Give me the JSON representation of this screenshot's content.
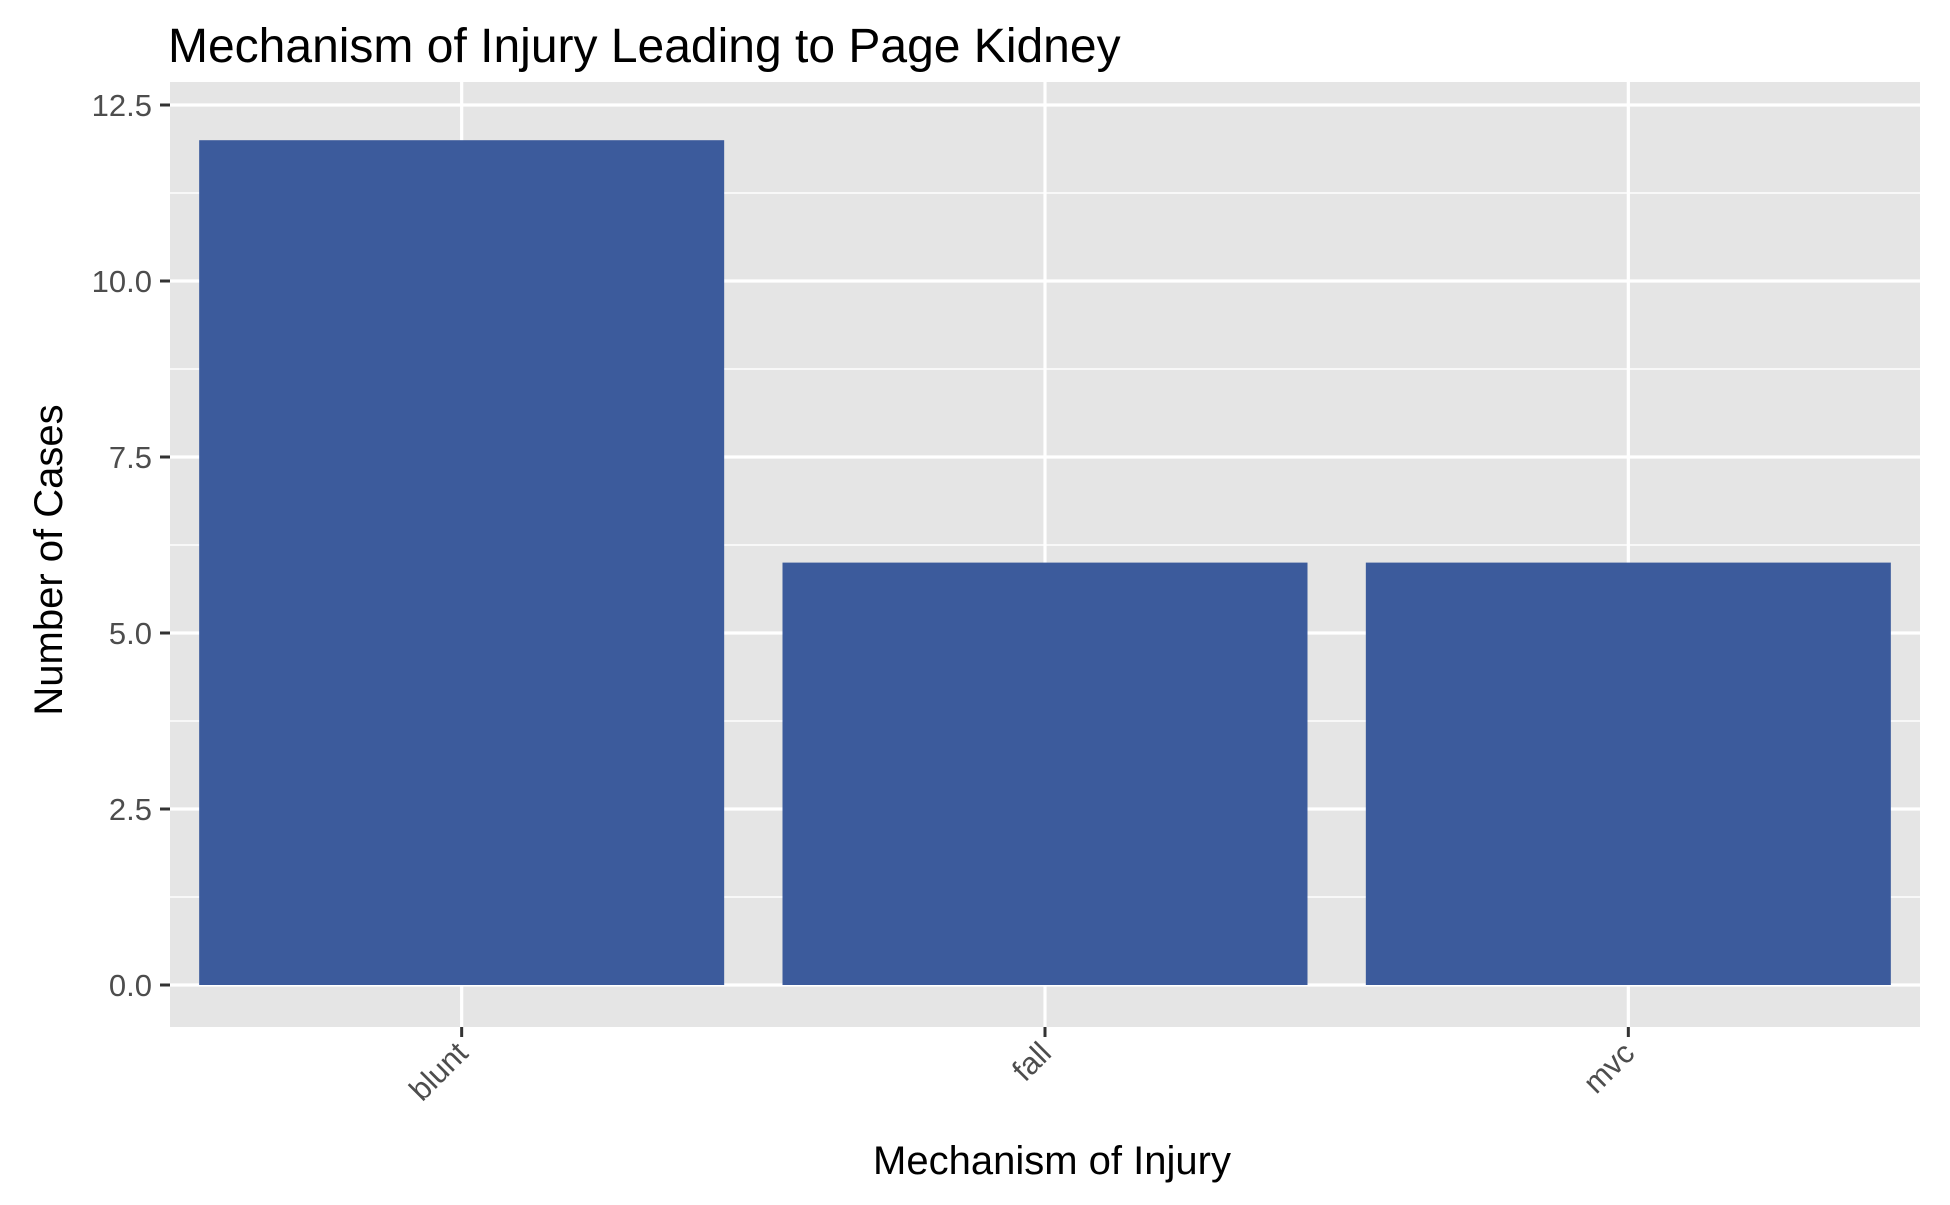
{
  "chart_data": {
    "type": "bar",
    "title": "Mechanism of Injury Leading to Page Kidney",
    "xlabel": "Mechanism of Injury",
    "ylabel": "Number of Cases",
    "categories": [
      "blunt",
      "fall",
      "mvc"
    ],
    "values": [
      12,
      6,
      6
    ],
    "ylim": [
      0,
      12.5
    ],
    "y_ticks": [
      0,
      2.5,
      5,
      7.5,
      10,
      12.5
    ],
    "y_tick_labels": [
      "0.0",
      "2.5",
      "5.0",
      "7.5",
      "10.0",
      "12.5"
    ],
    "x_tick_label_rotation": "45 degrees",
    "grid": true,
    "legend": "none",
    "colors": {
      "bar": "#3c5b9c",
      "panel_background": "#e5e5e5",
      "grid_line": "#ffffff",
      "tick_label": "#4d4d4d"
    }
  }
}
